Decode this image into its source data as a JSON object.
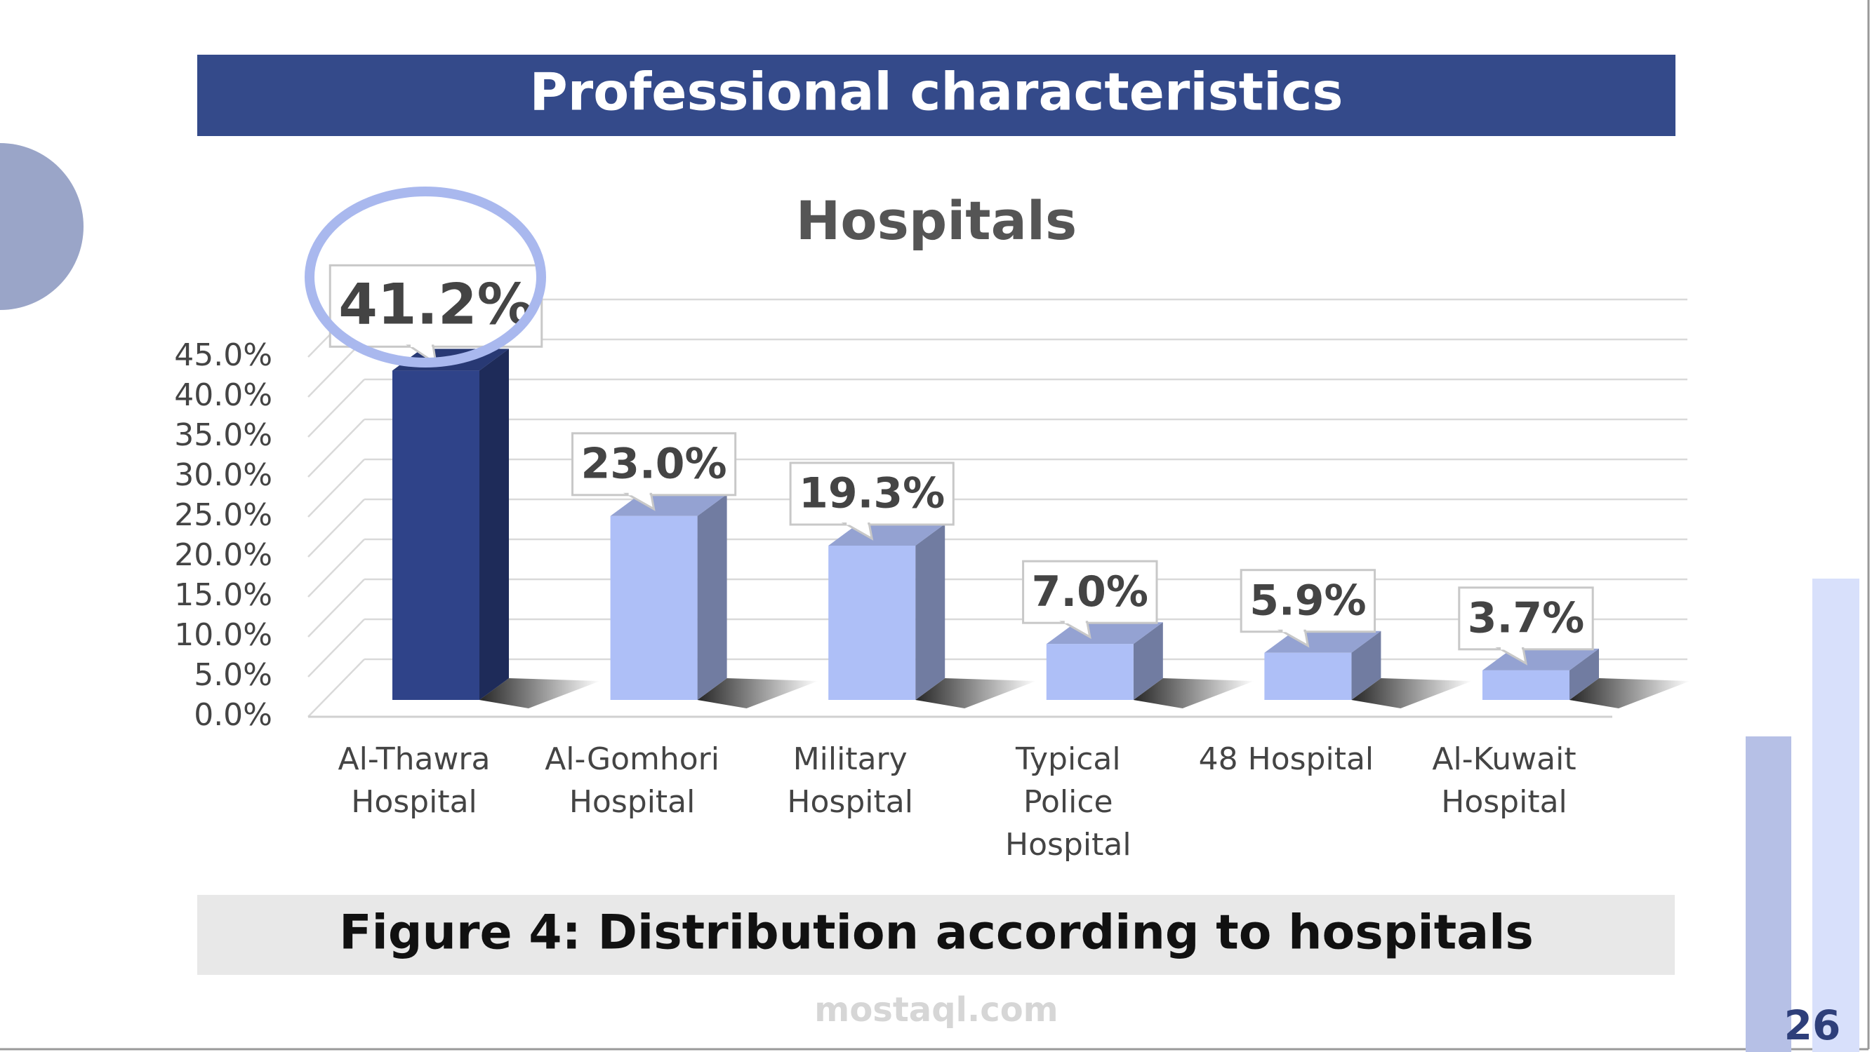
{
  "header": {
    "title": "Professional characteristics"
  },
  "chart_data": {
    "type": "bar3d",
    "title": "Hospitals",
    "categories": [
      "Al-Thawra Hospital",
      "Al-Gomhori Hospital",
      "Military Hospital",
      "Typical Police Hospital",
      "48 Hospital",
      "Al-Kuwait Hospital"
    ],
    "values": [
      41.2,
      23.0,
      19.3,
      7.0,
      5.9,
      3.7
    ],
    "value_labels": [
      "41.2%",
      "23.0%",
      "19.3%",
      "7.0%",
      "5.9%",
      "3.7%"
    ],
    "colors": [
      "#2f4389",
      "#aebff7",
      "#aebff7",
      "#aebff7",
      "#aebff7",
      "#aebff7"
    ],
    "ylim": [
      0,
      45
    ],
    "yticks": [
      {
        "value": 0,
        "label": "0.0%"
      },
      {
        "value": 5,
        "label": "5.0%"
      },
      {
        "value": 10,
        "label": "10.0%"
      },
      {
        "value": 15,
        "label": "15.0%"
      },
      {
        "value": 20,
        "label": "20.0%"
      },
      {
        "value": 25,
        "label": "25.0%"
      },
      {
        "value": 30,
        "label": "30.0%"
      },
      {
        "value": 35,
        "label": "35.0%"
      },
      {
        "value": 40,
        "label": "40.0%"
      },
      {
        "value": 45,
        "label": "45.0%"
      }
    ],
    "grid": true
  },
  "caption": "Figure 4: Distribution according to hospitals",
  "watermark": "mostaql.com",
  "page_number": "26"
}
